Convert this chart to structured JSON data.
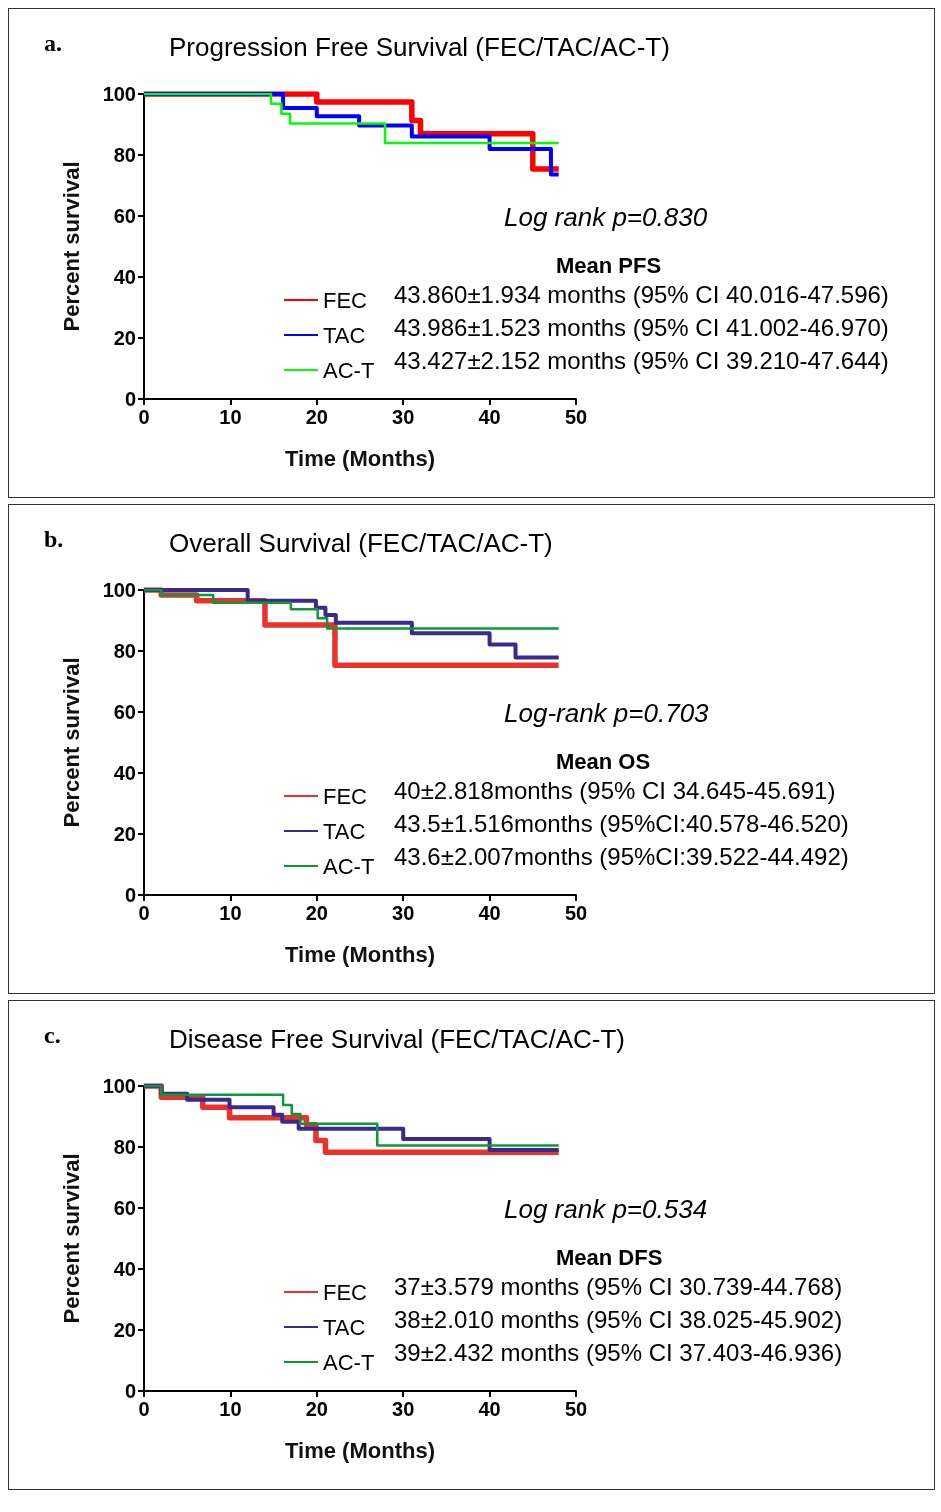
{
  "chart_data": [
    {
      "type": "step",
      "title": "Progression Free Survival (FEC/TAC/AC-T)",
      "xlabel": "Time (Months)",
      "ylabel": "Percent survival",
      "xlim": [
        0,
        50
      ],
      "xticks": [
        0,
        10,
        20,
        30,
        40,
        50
      ],
      "ylim": [
        0,
        100
      ],
      "yticks": [
        0,
        20,
        40,
        60,
        80,
        100
      ],
      "grid": false,
      "legend": "bottom",
      "marker": "none",
      "line_style": "solid",
      "annotations": [
        "a.",
        "Log rank p=0.830",
        "Mean PFS",
        "43.860±1.934 months (95% CI 40.016-47.596)",
        "43.986±1.523 months (95% CI 41.002-46.970)",
        "43.427±2.152 months (95% CI 39.210-47.644)"
      ],
      "series": [
        {
          "name": "FEC",
          "color": "#ff0000",
          "x": [
            0,
            20,
            31,
            32,
            45,
            48
          ],
          "values": [
            100,
            97.4,
            91.3,
            87,
            75.4,
            75.4
          ]
        },
        {
          "name": "TAC",
          "color": "#0000ff",
          "x": [
            0,
            16.1,
            20,
            24.9,
            31,
            40,
            47.1,
            48
          ],
          "values": [
            100,
            95.4,
            92.7,
            89.7,
            86.1,
            82,
            73.6,
            73.6
          ]
        },
        {
          "name": "AC-T",
          "color": "#00ff00",
          "x": [
            0,
            14.7,
            15.9,
            16.9,
            27.9,
            48
          ],
          "values": [
            100,
            96.8,
            93.5,
            90.3,
            83.9,
            83.9
          ]
        }
      ]
    },
    {
      "type": "step",
      "title": "Overall Survival (FEC/TAC/AC-T)",
      "xlabel": "Time (Months)",
      "ylabel": "Percent survival",
      "xlim": [
        0,
        50
      ],
      "xticks": [
        0,
        10,
        20,
        30,
        40,
        50
      ],
      "ylim": [
        0,
        100
      ],
      "yticks": [
        0,
        20,
        40,
        60,
        80,
        100
      ],
      "grid": false,
      "legend": "bottom",
      "marker": "none",
      "line_style": "solid",
      "annotations": [
        "b.",
        "Log-rank p=0.703",
        "Mean OS",
        "40±2.818months (95% CI 34.645-45.691)",
        "43.5±1.516months (95%CI:40.578-46.520)",
        "43.6±2.007months (95%CI:39.522-44.492)"
      ],
      "series": [
        {
          "name": "FEC",
          "color": "#e8322a",
          "x": [
            0,
            2,
            6.1,
            14,
            22.1,
            48
          ],
          "values": [
            100,
            98.4,
            96.5,
            88.5,
            75.3,
            75.3
          ]
        },
        {
          "name": "TAC",
          "color": "#3b2a8c",
          "x": [
            0,
            12,
            19.9,
            21,
            22.2,
            31,
            40,
            43,
            48
          ],
          "values": [
            100,
            96.5,
            94.2,
            91.8,
            89.3,
            85.8,
            82.1,
            77.9,
            77.9
          ]
        },
        {
          "name": "AC-T",
          "color": "#0a9a3c",
          "x": [
            0,
            2,
            8,
            17,
            20.1,
            21.2,
            48
          ],
          "values": [
            100,
            98.4,
            95.8,
            93.7,
            90.7,
            87.4,
            87.4
          ]
        }
      ]
    },
    {
      "type": "step",
      "title": "Disease Free Survival (FEC/TAC/AC-T)",
      "xlabel": "Time (Months)",
      "ylabel": "Percent survival",
      "xlim": [
        0,
        50
      ],
      "xticks": [
        0,
        10,
        20,
        30,
        40,
        50
      ],
      "ylim": [
        0,
        100
      ],
      "yticks": [
        0,
        20,
        40,
        60,
        80,
        100
      ],
      "grid": false,
      "legend": "bottom",
      "marker": "none",
      "line_style": "solid",
      "annotations": [
        "c.",
        "Log rank p=0.534",
        "Mean DFS",
        "37±3.579 months (95% CI 30.739-44.768)",
        "38±2.010 months (95% CI 38.025-45.902)",
        "39±2.432 months (95% CI 37.403-46.936)"
      ],
      "series": [
        {
          "name": "FEC",
          "color": "#e8322a",
          "x": [
            0,
            2,
            6.8,
            9.9,
            18.8,
            19.9,
            21,
            48
          ],
          "values": [
            100,
            96.3,
            93,
            89.6,
            87.3,
            82.1,
            78.3,
            78.3
          ]
        },
        {
          "name": "TAC",
          "color": "#3b2a8c",
          "x": [
            0,
            2,
            5,
            9.9,
            15,
            16,
            17.9,
            30,
            40,
            48
          ],
          "values": [
            100,
            97.5,
            95.5,
            93,
            90.6,
            88.3,
            86,
            82.6,
            79,
            79
          ]
        },
        {
          "name": "AC-T",
          "color": "#0a9a3c",
          "x": [
            0,
            2,
            16.1,
            17.1,
            18.1,
            27,
            48
          ],
          "values": [
            100,
            97.1,
            93.8,
            90.8,
            87.6,
            80.5,
            80.5
          ]
        }
      ]
    }
  ]
}
